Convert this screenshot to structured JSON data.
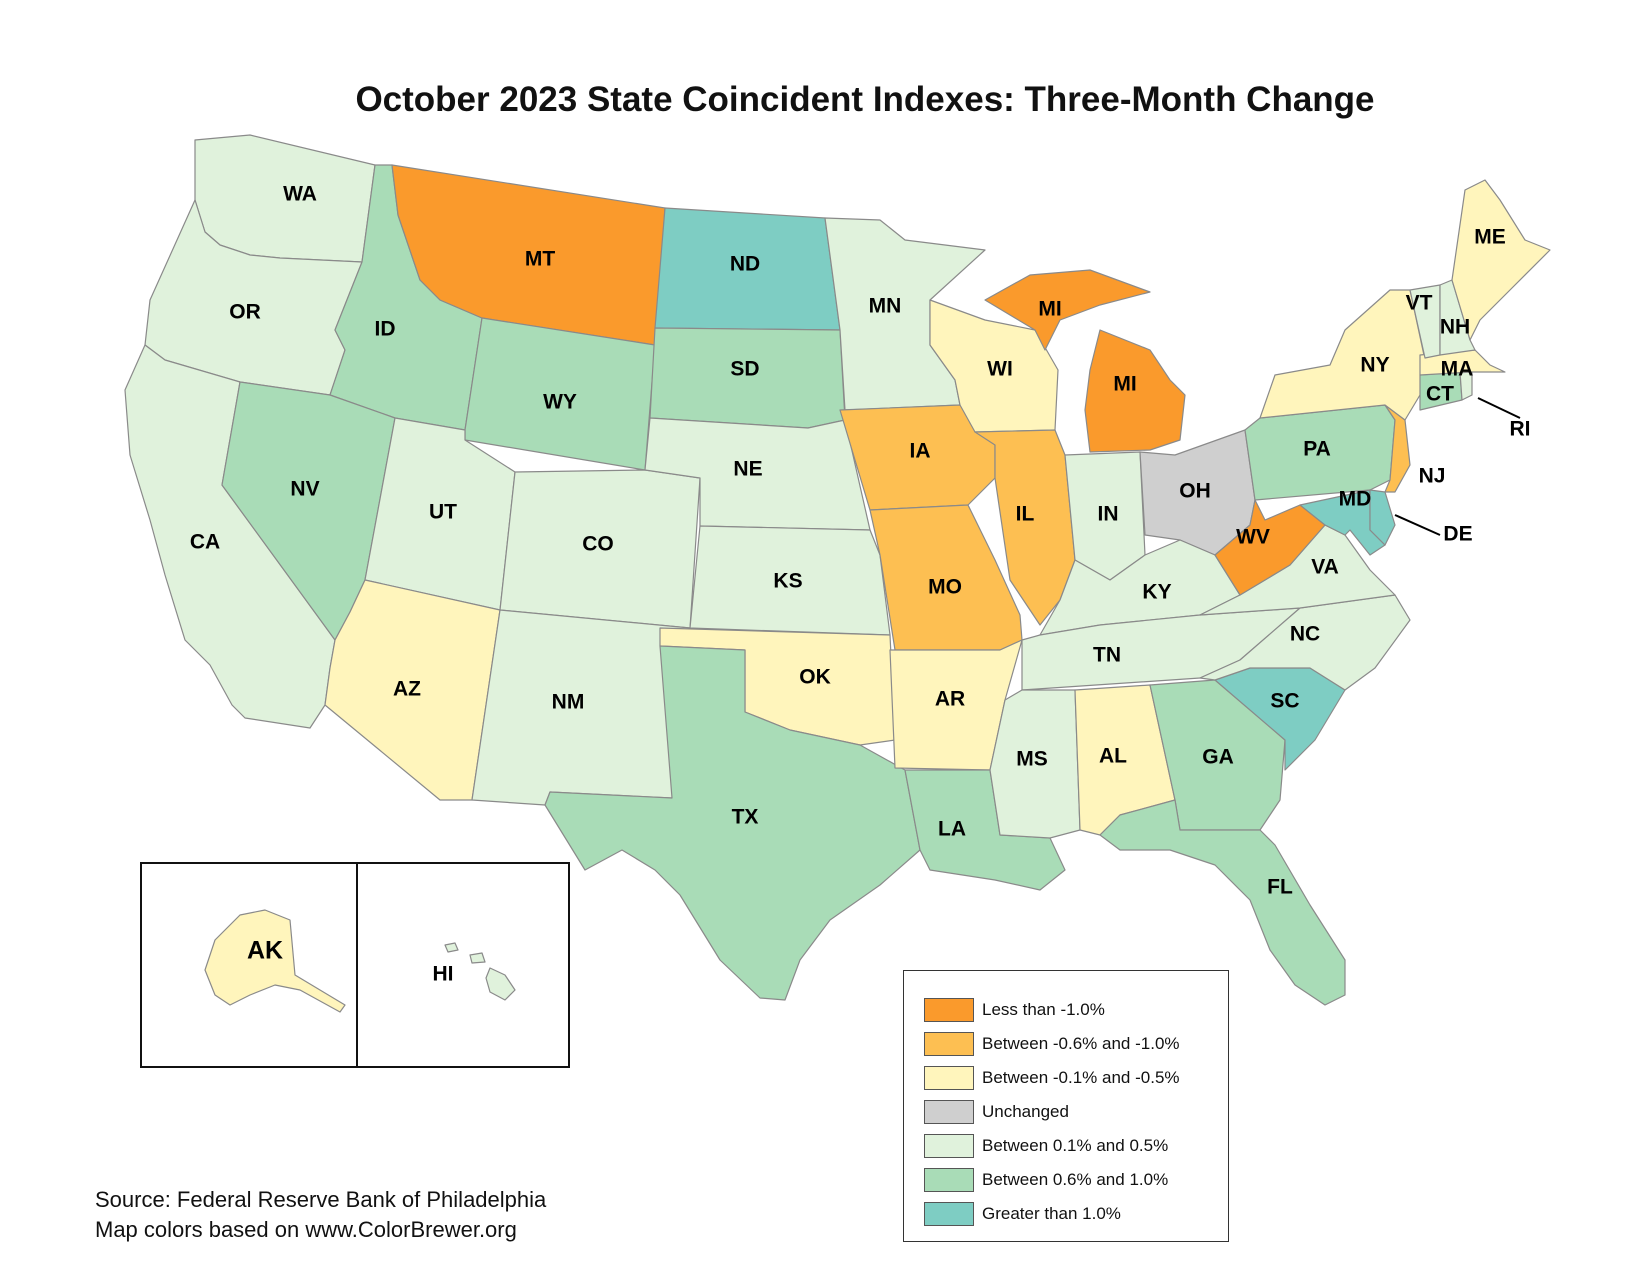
{
  "title": "October 2023 State Coincident Indexes: Three-Month Change",
  "legend": [
    {
      "label": "Less than -1.0%",
      "color": "#fa9a2c"
    },
    {
      "label": "Between -0.6% and -1.0%",
      "color": "#fdbf52"
    },
    {
      "label": "Between -0.1% and -0.5%",
      "color": "#fff5bc"
    },
    {
      "label": "Unchanged",
      "color": "#cfcfcf"
    },
    {
      "label": "Between 0.1% and 0.5%",
      "color": "#e0f2dc"
    },
    {
      "label": "Between 0.6% and 1.0%",
      "color": "#a9dcb7"
    },
    {
      "label": "Greater than 1.0%",
      "color": "#7ecdc3"
    }
  ],
  "states": {
    "WA": 4,
    "OR": 4,
    "CA": 4,
    "ID": 5,
    "NV": 5,
    "MT": 0,
    "WY": 5,
    "UT": 4,
    "AZ": 2,
    "CO": 4,
    "NM": 4,
    "ND": 6,
    "SD": 5,
    "NE": 4,
    "KS": 4,
    "OK": 2,
    "TX": 5,
    "MN": 4,
    "IA": 1,
    "MO": 1,
    "AR": 2,
    "LA": 5,
    "WI": 2,
    "IL": 1,
    "MI": 0,
    "IN": 4,
    "OH": 3,
    "KY": 4,
    "TN": 4,
    "MS": 4,
    "AL": 2,
    "GA": 5,
    "FL": 5,
    "SC": 6,
    "NC": 4,
    "VA": 4,
    "WV": 0,
    "MD": 6,
    "DE": 6,
    "PA": 5,
    "NJ": 1,
    "NY": 2,
    "CT": 5,
    "RI": 4,
    "MA": 2,
    "VT": 4,
    "NH": 4,
    "ME": 2,
    "AK": 2,
    "HI": 4
  },
  "labels": [
    "WA",
    "OR",
    "CA",
    "ID",
    "NV",
    "MT",
    "WY",
    "UT",
    "AZ",
    "CO",
    "NM",
    "ND",
    "SD",
    "NE",
    "KS",
    "OK",
    "TX",
    "MN",
    "IA",
    "MO",
    "AR",
    "LA",
    "WI",
    "IL",
    "MI",
    "MI",
    "IN",
    "OH",
    "KY",
    "TN",
    "MS",
    "AL",
    "GA",
    "FL",
    "SC",
    "NC",
    "VA",
    "WV",
    "MD",
    "DE",
    "PA",
    "NJ",
    "NY",
    "CT",
    "RI",
    "MA",
    "VT",
    "NH",
    "ME",
    "AK",
    "HI"
  ],
  "source_line1": "Source: Federal Reserve Bank of Philadelphia",
  "source_line2": "Map colors based on www.ColorBrewer.org"
}
